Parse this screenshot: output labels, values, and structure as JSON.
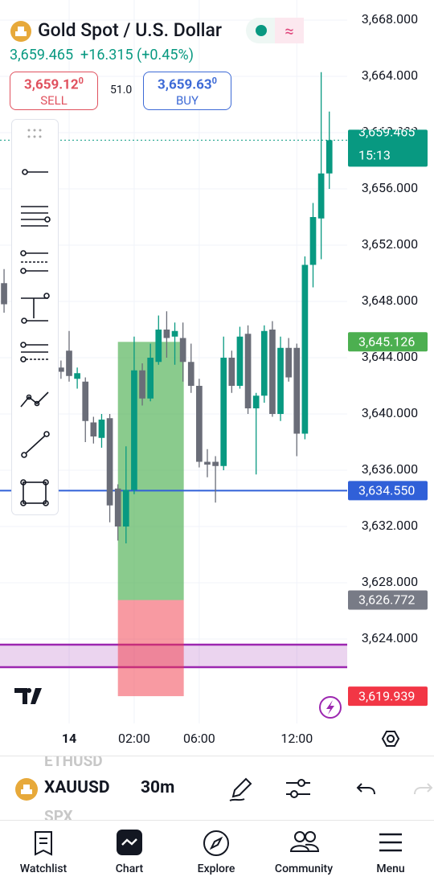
{
  "header": {
    "title": "Gold Spot / U.S. Dollar",
    "last": "3,659.465",
    "change": "+16.315 (+0.45%)",
    "sell_price": "3,659.12",
    "sell_sup": "0",
    "sell": "SELL",
    "spread": "51.0",
    "buy_price": "3,659.63",
    "buy_sup": "0",
    "buy": "BUY"
  },
  "chart_data": {
    "type": "candlestick",
    "x": [
      -8,
      -1,
      0,
      1,
      2,
      3,
      4,
      5,
      6,
      7,
      8,
      9,
      10,
      11,
      12,
      13,
      14,
      15,
      16,
      17,
      18,
      19,
      20,
      21,
      22,
      23,
      24,
      25,
      26,
      27,
      28,
      29,
      30,
      31,
      32
    ],
    "open": [
      3649.3,
      3643.3,
      3644.5,
      3642.5,
      3642.3,
      3639.4,
      3638.3,
      3639.7,
      3634.7,
      3632.0,
      3634.6,
      3643.1,
      3641.1,
      3643.7,
      3646.0,
      3645.5,
      3645.4,
      3643.7,
      3642.0,
      3636.6,
      3636.6,
      3636.3,
      3644.0,
      3642.0,
      3645.7,
      3640.4,
      3641.3,
      3646.0,
      3640.0,
      3644.7,
      3644.7,
      3638.6,
      3650.6,
      3653.9,
      3657.1
    ],
    "high": [
      3650.3,
      3643.8,
      3645.9,
      3643.3,
      3642.6,
      3639.8,
      3640.0,
      3640.0,
      3635.0,
      3637.7,
      3645.5,
      3643.6,
      3645.0,
      3647.0,
      3647.3,
      3646.5,
      3646.5,
      3645.0,
      3642.5,
      3637.5,
      3637.0,
      3645.5,
      3644.5,
      3646.2,
      3646.3,
      3641.5,
      3646.3,
      3646.6,
      3645.5,
      3645.4,
      3645.0,
      3651.2,
      3655.0,
      3664.3,
      3661.5
    ],
    "low": [
      3647.2,
      3642.5,
      3642.3,
      3641.8,
      3638.0,
      3637.9,
      3637.6,
      3632.3,
      3631.0,
      3630.8,
      3634.3,
      3640.6,
      3640.9,
      3643.5,
      3644.0,
      3643.5,
      3642.3,
      3641.5,
      3636.2,
      3635.5,
      3633.7,
      3636.0,
      3641.5,
      3641.8,
      3640.0,
      3635.7,
      3640.8,
      3639.8,
      3639.5,
      3642.3,
      3637.0,
      3638.2,
      3649.0,
      3651.0,
      3656.0
    ],
    "close": [
      3647.8,
      3643.0,
      3642.7,
      3642.9,
      3639.5,
      3638.4,
      3639.6,
      3633.5,
      3632.0,
      3634.6,
      3643.1,
      3641.1,
      3644.0,
      3646.0,
      3645.4,
      3645.9,
      3643.7,
      3642.0,
      3636.6,
      3636.4,
      3636.3,
      3644.0,
      3642.0,
      3645.5,
      3640.4,
      3641.3,
      3645.9,
      3640.0,
      3644.7,
      3642.6,
      3638.6,
      3650.6,
      3654.0,
      3657.1,
      3659.465
    ],
    "up_color": "#089981",
    "down_color": "#6a6d78",
    "xlim": [
      -8.5,
      34.2
    ],
    "xticks": [
      {
        "value": 0,
        "label": "14"
      },
      {
        "value": 8,
        "label": "02:00"
      },
      {
        "value": 16,
        "label": "06:00"
      },
      {
        "value": 28,
        "label": "12:00"
      }
    ],
    "ylim": [
      3618.0,
      3669.43
    ],
    "yticks": [
      {
        "value": 3668,
        "label": "3,668.000"
      },
      {
        "value": 3664,
        "label": "3,664.000"
      },
      {
        "value": 3660,
        "label": "3,660.000"
      },
      {
        "value": 3656,
        "label": "3,656.000"
      },
      {
        "value": 3652,
        "label": "3,652.000"
      },
      {
        "value": 3648,
        "label": "3,648.000"
      },
      {
        "value": 3644,
        "label": "3,644.000"
      },
      {
        "value": 3640,
        "label": "3,640.000"
      },
      {
        "value": 3636,
        "label": "3,636.000"
      },
      {
        "value": 3632,
        "label": "3,632.000"
      },
      {
        "value": 3628,
        "label": "3,628.000"
      },
      {
        "value": 3624,
        "label": "3,624.000"
      }
    ],
    "grid": true,
    "levels": {
      "values": [
        3659.465,
        3645.126,
        3634.55,
        3626.772,
        3619.939
      ],
      "value_labels": [
        "3,659.465",
        "3,645.126",
        "3,634.550",
        "3,626.772",
        "3,619.939"
      ],
      "colors": [
        "#089981",
        "#4caf50",
        "#3060d8",
        "#787b86",
        "#f23645"
      ]
    },
    "countdown": "15:13",
    "position_x": [
      6,
      14.1
    ],
    "band": [
      3622.0,
      3623.6
    ],
    "band_color": "#9c27b0"
  },
  "toolbar": {
    "symbol_prev": "ETHUSD",
    "symbol": "XAUUSD",
    "symbol_next": "SPX",
    "interval": "30m"
  },
  "nav": [
    "Watchlist",
    "Chart",
    "Explore",
    "Community",
    "Menu"
  ]
}
